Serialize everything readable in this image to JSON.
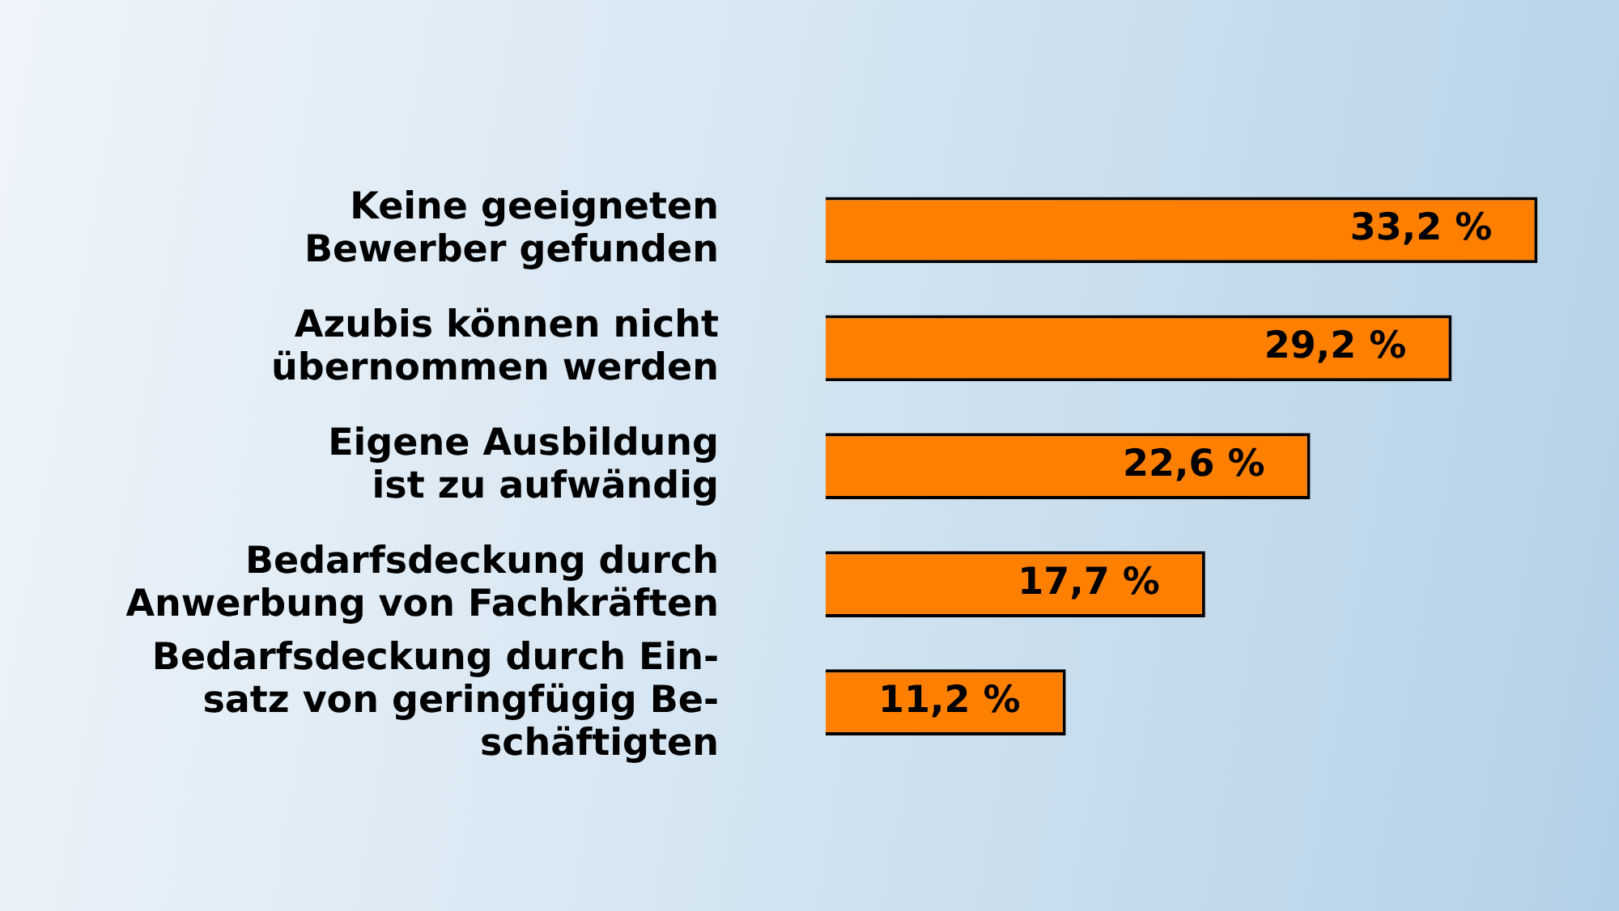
{
  "chart_data": {
    "type": "bar",
    "orientation": "horizontal",
    "categories": [
      "Keine geeigneten\nBewerber gefunden",
      "Azubis können nicht\nübernommen werden",
      "Eigene Ausbildung\nist zu aufwändig",
      "Bedarfsdeckung durch\nAnwerbung von Fachkräften",
      "Bedarfsdeckung durch Ein-\nsatz von geringfügig Be-\nschäftigten"
    ],
    "values": [
      33.2,
      29.2,
      22.6,
      17.7,
      11.2
    ],
    "value_labels": [
      "33,2 %",
      "29,2 %",
      "22,6 %",
      "17,7 %",
      "11,2 %"
    ],
    "color": "#ff8000",
    "xlim": [
      0,
      37
    ],
    "tick_labels": "y",
    "legend": false
  }
}
